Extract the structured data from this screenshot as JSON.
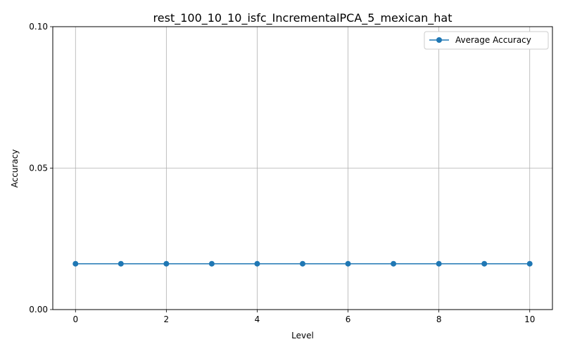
{
  "chart_data": {
    "type": "line",
    "title": "rest_100_10_10_isfc_IncrementalPCA_5_mexican_hat",
    "xlabel": "Level",
    "ylabel": "Accuracy",
    "xlim": [
      -0.5,
      10.5
    ],
    "ylim": [
      0.0,
      0.1
    ],
    "xticks": [
      0,
      2,
      4,
      6,
      8,
      10
    ],
    "xtick_labels": [
      "0",
      "2",
      "4",
      "6",
      "8",
      "10"
    ],
    "yticks": [
      0.0,
      0.05,
      0.1
    ],
    "ytick_labels": [
      "0.00",
      "0.05",
      "0.10"
    ],
    "grid": true,
    "legend": "top-right",
    "series": [
      {
        "name": "Average Accuracy",
        "color": "#1f77b4",
        "marker": "circle",
        "x": [
          0,
          1,
          2,
          3,
          4,
          5,
          6,
          7,
          8,
          9,
          10
        ],
        "y": [
          0.0162,
          0.0162,
          0.0162,
          0.0162,
          0.0162,
          0.0162,
          0.0162,
          0.0162,
          0.0162,
          0.0162,
          0.0162
        ]
      }
    ]
  }
}
